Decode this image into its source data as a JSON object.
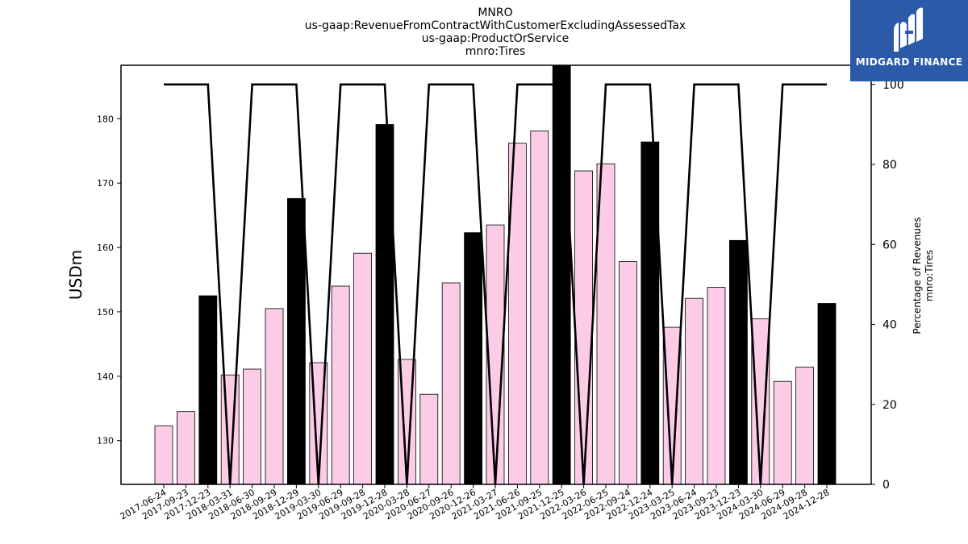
{
  "header": {
    "title_lines": [
      "MNRO",
      "us-gaap:RevenueFromContractWithCustomerExcludingAssessedTax",
      "us-gaap:ProductOrService",
      "mnro:Tires"
    ]
  },
  "logo": {
    "text": "MIDGARD FINANCE",
    "icon": "midgard-logo-icon",
    "background": "#2a5aa8"
  },
  "chart_data": {
    "type": "bar",
    "categories": [
      "2017-06-24",
      "2017-09-23",
      "2017-12-23",
      "2018-03-31",
      "2018-06-30",
      "2018-09-29",
      "2018-12-29",
      "2019-03-30",
      "2019-06-29",
      "2019-09-28",
      "2019-12-28",
      "2020-03-28",
      "2020-06-27",
      "2020-09-26",
      "2020-12-26",
      "2021-03-27",
      "2021-06-26",
      "2021-09-25",
      "2021-12-25",
      "2022-03-26",
      "2022-06-25",
      "2022-09-24",
      "2022-12-24",
      "2023-03-25",
      "2023-06-24",
      "2023-09-23",
      "2023-12-23",
      "2024-03-30",
      "2024-06-29",
      "2024-09-28",
      "2024-12-28"
    ],
    "values": [
      132.3,
      134.5,
      152.5,
      140.2,
      141.1,
      150.5,
      167.6,
      142.1,
      154.0,
      159.1,
      179.1,
      142.6,
      137.2,
      154.5,
      162.3,
      163.5,
      176.2,
      178.1,
      188.3,
      171.9,
      173.0,
      157.8,
      176.4,
      147.6,
      152.1,
      153.8,
      161.1,
      148.9,
      139.2,
      141.4,
      151.3
    ],
    "highlighted": [
      false,
      false,
      true,
      false,
      false,
      false,
      true,
      false,
      false,
      false,
      true,
      false,
      false,
      false,
      true,
      false,
      false,
      false,
      true,
      false,
      false,
      false,
      true,
      false,
      false,
      false,
      true,
      false,
      false,
      false,
      true
    ],
    "line_values": [
      100,
      100,
      100,
      0,
      100,
      100,
      100,
      0,
      100,
      100,
      100,
      0,
      100,
      100,
      100,
      0,
      100,
      100,
      100,
      0,
      100,
      100,
      100,
      0,
      100,
      100,
      100,
      0,
      100,
      100,
      100
    ],
    "ylabel": "USDm",
    "ylim": [
      123.2,
      188.3
    ],
    "yticks": [
      130,
      140,
      150,
      160,
      170,
      180
    ],
    "y2label_lines": [
      "Percentage of Revenues",
      "mnro:Tires"
    ],
    "y2lim": [
      0,
      104.8
    ],
    "y2ticks": [
      0,
      20,
      40,
      60,
      80,
      100
    ],
    "colors": {
      "bar": "#fccce6",
      "highlight": "#000000",
      "line": "#000000",
      "edge": "#000000"
    }
  }
}
